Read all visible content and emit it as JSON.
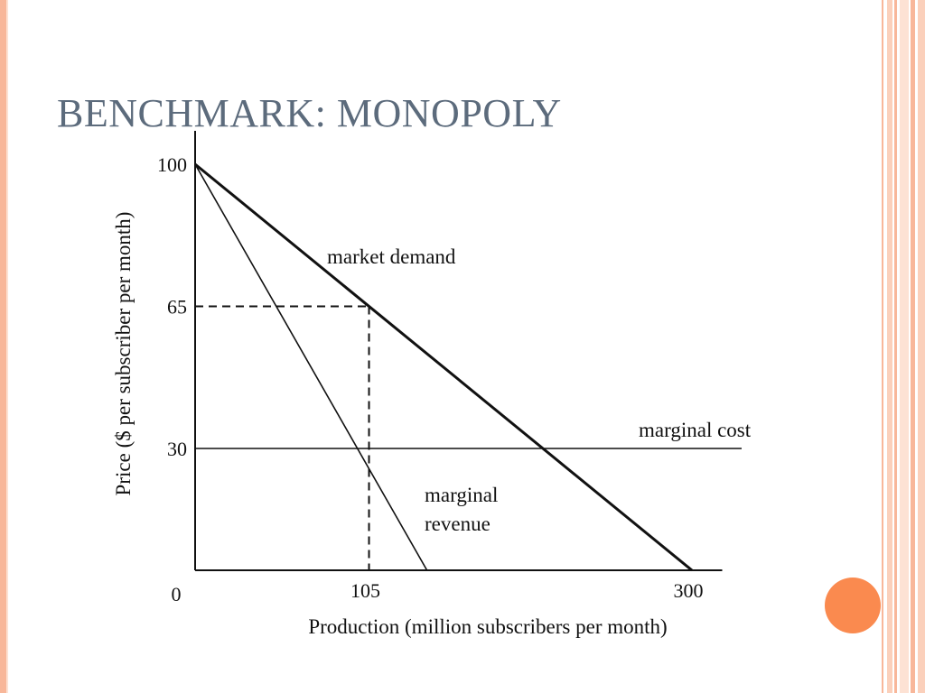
{
  "slide": {
    "title": "BENCHMARK: MONOPOLY",
    "colors": {
      "title": "#5c6b7c",
      "accent_circle": "#fa8a4f",
      "border": "#f8b79a"
    }
  },
  "chart_data": {
    "type": "line",
    "xlabel": "Production (million subscribers per month)",
    "ylabel": "Price ($ per subscriber per month)",
    "xlim": [
      0,
      315
    ],
    "ylim": [
      0,
      100
    ],
    "origin_label": "0",
    "x_ticks": [
      105,
      300
    ],
    "x_tick_labels": [
      "105",
      "300"
    ],
    "y_ticks": [
      100,
      65,
      30
    ],
    "y_tick_labels": [
      "100",
      "65",
      "30"
    ],
    "series": [
      {
        "name": "market demand",
        "style": "solid-thick",
        "x": [
          0,
          300
        ],
        "y": [
          100,
          0
        ]
      },
      {
        "name": "marginal revenue",
        "style": "solid",
        "x": [
          0,
          140
        ],
        "y": [
          100,
          0
        ]
      },
      {
        "name": "marginal cost",
        "style": "solid",
        "x": [
          0,
          330
        ],
        "y": [
          30,
          30
        ]
      }
    ],
    "reference_lines": [
      {
        "style": "dashed",
        "x": [
          0,
          105
        ],
        "y": [
          65,
          65
        ]
      },
      {
        "style": "dashed",
        "x": [
          105,
          105
        ],
        "y": [
          65,
          0
        ]
      }
    ],
    "annotations": {
      "market_demand": "market demand",
      "marginal_cost": "marginal cost",
      "marginal_revenue_line1": "marginal",
      "marginal_revenue_line2": "revenue"
    }
  }
}
